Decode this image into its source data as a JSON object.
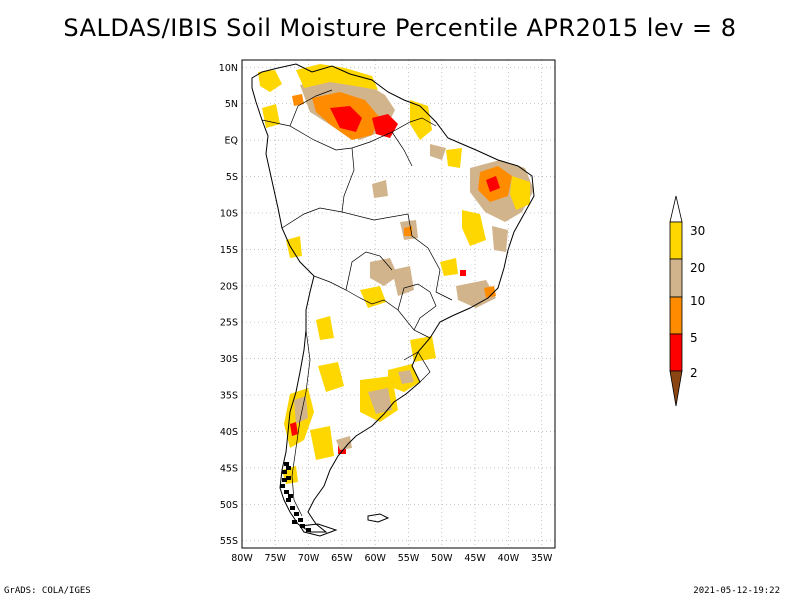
{
  "title": "SALDAS/IBIS Soil Moisture Percentile APR2015 lev = 8",
  "map": {
    "region": "South America",
    "lat_ticks": [
      "10N",
      "5N",
      "EQ",
      "5S",
      "10S",
      "15S",
      "20S",
      "25S",
      "30S",
      "35S",
      "40S",
      "45S",
      "50S",
      "55S"
    ],
    "lon_ticks": [
      "80W",
      "75W",
      "70W",
      "65W",
      "60W",
      "55W",
      "50W",
      "45W",
      "40W",
      "35W"
    ],
    "grid": "dotted",
    "lon_range": [
      -80,
      -33
    ],
    "lat_range": [
      -56,
      11
    ]
  },
  "colorbar": {
    "levels": [
      "2",
      "5",
      "10",
      "20",
      "30"
    ],
    "colors": {
      "lt2": "#8b4513",
      "2to5": "#ff0000",
      "5to10": "#ff8c00",
      "10to20": "#d2b48c",
      "20to30": "#ffd700",
      "gt30": "#ffffff"
    }
  },
  "footer": {
    "left": "GrADS: COLA/IGES",
    "right": "2021-05-12-19:22"
  }
}
